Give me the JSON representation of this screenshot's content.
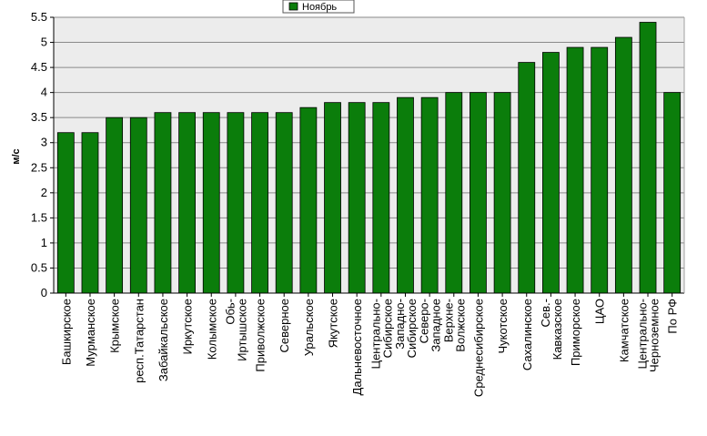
{
  "chart_data": {
    "type": "bar",
    "ylabel": "м/с",
    "ylim": [
      0,
      5.5
    ],
    "yticks": [
      "0",
      "0.5",
      "1",
      "1.5",
      "2",
      "2.5",
      "3",
      "3.5",
      "4",
      "4.5",
      "5",
      "5.5"
    ],
    "grid": true,
    "legend_position": "top-center",
    "series": [
      {
        "name": "Ноябрь",
        "color": "#0b7d0b",
        "values": [
          3.2,
          3.2,
          3.5,
          3.5,
          3.6,
          3.6,
          3.6,
          3.6,
          3.6,
          3.6,
          3.7,
          3.8,
          3.8,
          3.8,
          3.9,
          3.9,
          4.0,
          4.0,
          4.0,
          4.6,
          4.8,
          4.9,
          4.9,
          5.1,
          5.4,
          4.0
        ]
      }
    ],
    "categories": [
      "Башкирское",
      "Мурманское",
      "Крымское",
      "респ.Татарстан",
      "Забайкальское",
      "Иркутское",
      "Колымское",
      "Обь-Иртышское",
      "Приволжское",
      "Северное",
      "Уральское",
      "Якутское",
      "Дальневосточное",
      "Центрально-Сибирское",
      "Западно-Сибирское",
      "Северо-Западное",
      "Верхне-Волжское",
      "Среднесибирское",
      "Чукотское",
      "Сахалинское",
      "Сев.-Кавказское",
      "Приморское",
      "ЦАО",
      "Камчатское",
      "Центрально-Черноземное",
      "По РФ"
    ],
    "category_lines": [
      [
        "Башкирское"
      ],
      [
        "Мурманское"
      ],
      [
        "Крымское"
      ],
      [
        "респ.Татарстан"
      ],
      [
        "Забайкальское"
      ],
      [
        "Иркутское"
      ],
      [
        "Колымское"
      ],
      [
        "Обь-",
        "Иртышское"
      ],
      [
        "Приволжское"
      ],
      [
        "Северное"
      ],
      [
        "Уральское"
      ],
      [
        "Якутское"
      ],
      [
        "Дальневосточное"
      ],
      [
        "Центрально-",
        "Сибирское"
      ],
      [
        "Западно-",
        "Сибирское"
      ],
      [
        "Северо-",
        "Западное"
      ],
      [
        "Верхне-",
        "Волжское"
      ],
      [
        "Среднесибирское"
      ],
      [
        "Чукотское"
      ],
      [
        "Сахалинское"
      ],
      [
        "Сев.-",
        "Кавказское"
      ],
      [
        "Приморское"
      ],
      [
        "ЦАО"
      ],
      [
        "Камчатское"
      ],
      [
        "Центрально-",
        "Черноземное"
      ],
      [
        "По РФ"
      ]
    ]
  }
}
